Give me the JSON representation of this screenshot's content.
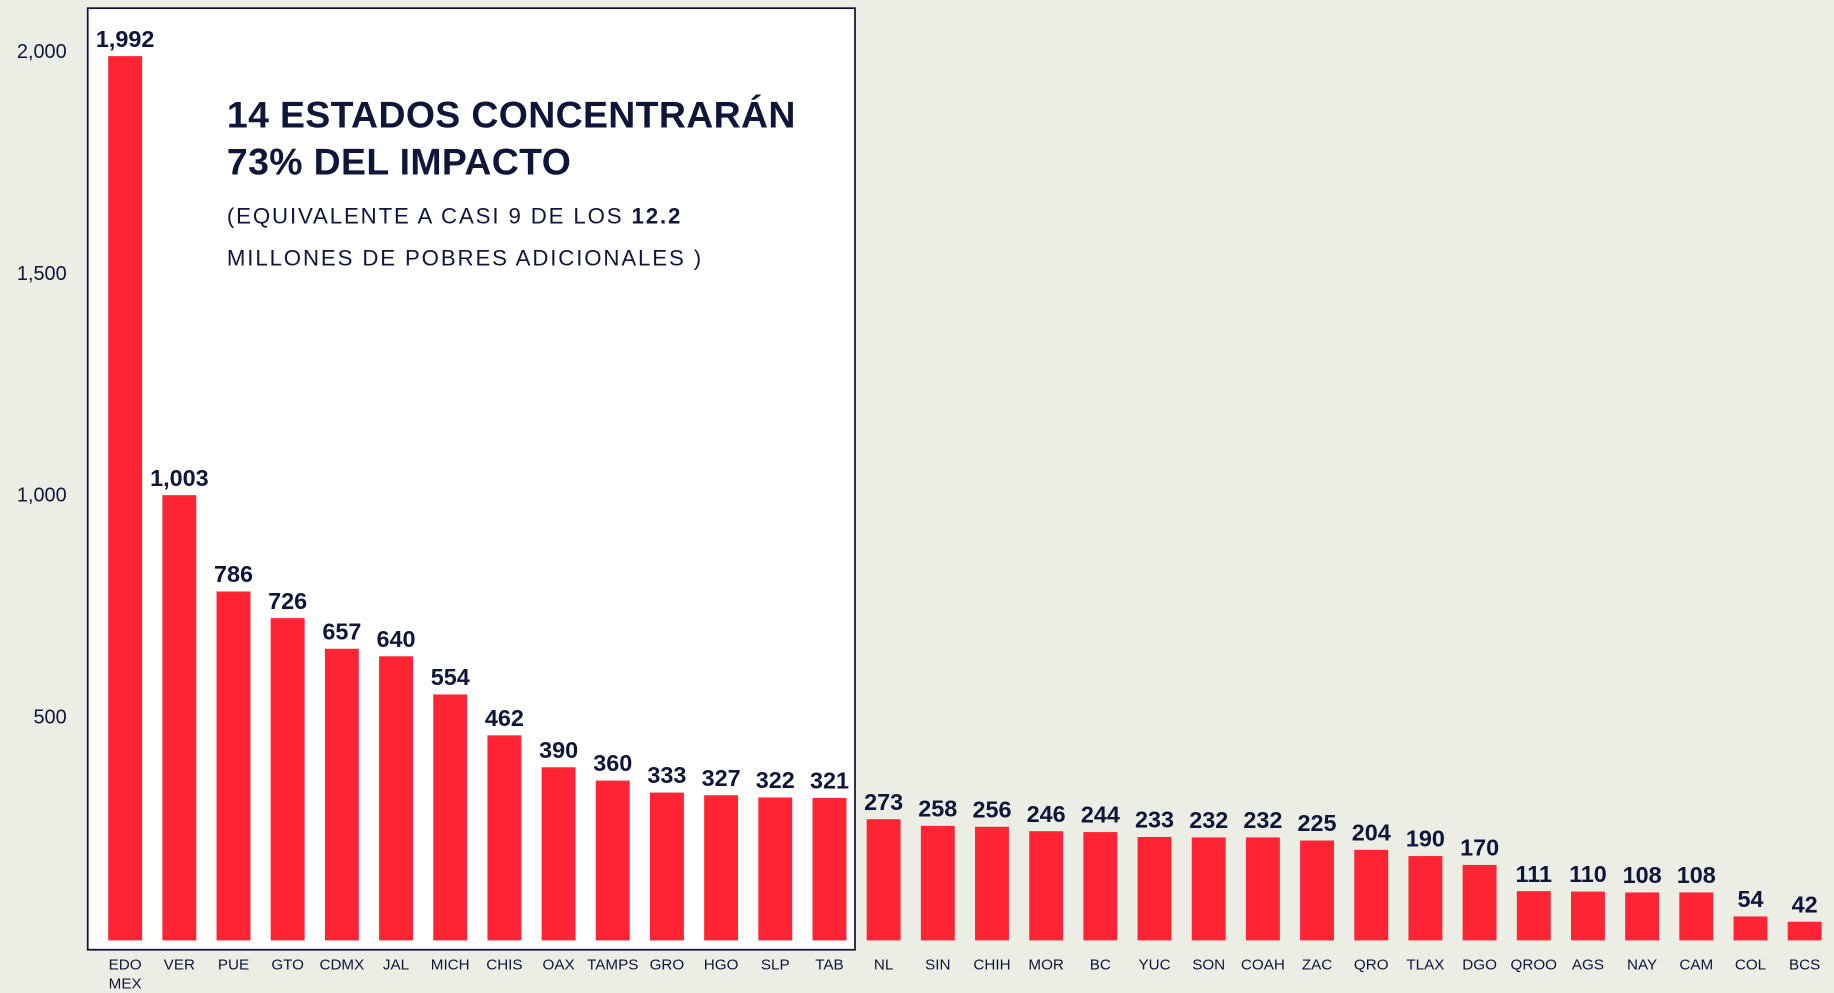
{
  "chart_data": {
    "type": "bar",
    "annotation": {
      "title": [
        "14 ESTADOS CONCENTRARÁN",
        "73% DEL IMPACTO"
      ],
      "note": [
        "(EQUIVALENTE A CASI 9 DE LOS ",
        "12.2",
        " MILLONES DE POBRES ADICIONALES )"
      ]
    },
    "categories": [
      "EDO MEX",
      "VER",
      "PUE",
      "GTO",
      "CDMX",
      "JAL",
      "MICH",
      "CHIS",
      "OAX",
      "TAMPS",
      "GRO",
      "HGO",
      "SLP",
      "TAB",
      "NL",
      "SIN",
      "CHIH",
      "MOR",
      "BC",
      "YUC",
      "SON",
      "COAH",
      "ZAC",
      "QRO",
      "TLAX",
      "DGO",
      "QROO",
      "AGS",
      "NAY",
      "CAM",
      "COL",
      "BCS"
    ],
    "values": [
      1992,
      1003,
      786,
      726,
      657,
      640,
      554,
      462,
      390,
      360,
      333,
      327,
      322,
      321,
      273,
      258,
      256,
      246,
      244,
      233,
      232,
      232,
      225,
      204,
      190,
      170,
      111,
      110,
      108,
      108,
      54,
      42
    ],
    "value_labels": [
      "1,992",
      "1,003",
      "786",
      "726",
      "657",
      "640",
      "554",
      "462",
      "390",
      "360",
      "333",
      "327",
      "322",
      "321",
      "273",
      "258",
      "256",
      "246",
      "244",
      "233",
      "232",
      "232",
      "225",
      "204",
      "190",
      "170",
      "111",
      "110",
      "108",
      "108",
      "54",
      "42"
    ],
    "color": "#ff2534",
    "ylim": [
      0,
      2100
    ],
    "yticks": [
      {
        "value": 500,
        "label": "500"
      },
      {
        "value": 1000,
        "label": "1,000"
      },
      {
        "value": 1500,
        "label": "1,500"
      },
      {
        "value": 2000,
        "label": "2,000"
      }
    ]
  }
}
